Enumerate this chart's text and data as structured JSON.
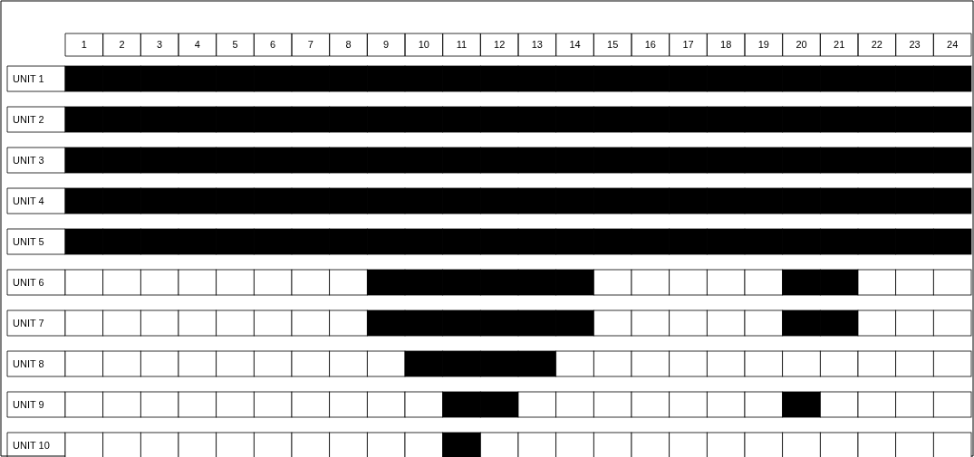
{
  "chart_data": {
    "type": "bar",
    "orientation": "horizontal",
    "stacked": true,
    "categories": [
      "UNIT 1",
      "UNIT 2",
      "UNIT 3",
      "UNIT 4",
      "UNIT 5",
      "UNIT 6",
      "UNIT 7",
      "UNIT 8",
      "UNIT 9",
      "UNIT 10"
    ],
    "series": [
      {
        "colors": [
          "#000000",
          "#000000",
          "#000000",
          "#000000",
          "#000000",
          "#ffffff",
          "#ffffff",
          "#ffffff",
          "#ffffff",
          "#ffffff"
        ],
        "values": [
          1,
          1,
          1,
          1,
          1,
          1,
          1,
          1,
          1,
          1
        ]
      },
      {
        "colors": [
          "#000000",
          "#000000",
          "#000000",
          "#000000",
          "#000000",
          "#ffffff",
          "#ffffff",
          "#ffffff",
          "#ffffff",
          "#ffffff"
        ],
        "values": [
          1,
          1,
          1,
          1,
          1,
          1,
          1,
          1,
          1,
          1
        ]
      },
      {
        "colors": [
          "#000000",
          "#000000",
          "#000000",
          "#000000",
          "#000000",
          "#ffffff",
          "#ffffff",
          "#ffffff",
          "#ffffff",
          "#ffffff"
        ],
        "values": [
          1,
          1,
          1,
          1,
          1,
          1,
          1,
          1,
          1,
          1
        ]
      },
      {
        "colors": [
          "#000000",
          "#000000",
          "#000000",
          "#000000",
          "#000000",
          "#ffffff",
          "#ffffff",
          "#ffffff",
          "#ffffff",
          "#ffffff"
        ],
        "values": [
          1,
          1,
          1,
          1,
          1,
          1,
          1,
          1,
          1,
          1
        ]
      },
      {
        "colors": [
          "#000000",
          "#000000",
          "#000000",
          "#000000",
          "#000000",
          "#ffffff",
          "#ffffff",
          "#ffffff",
          "#ffffff",
          "#ffffff"
        ],
        "values": [
          1,
          1,
          1,
          1,
          1,
          1,
          1,
          1,
          1,
          1
        ]
      },
      {
        "colors": [
          "#000000",
          "#000000",
          "#000000",
          "#000000",
          "#000000",
          "#ffffff",
          "#ffffff",
          "#ffffff",
          "#ffffff",
          "#ffffff"
        ],
        "values": [
          1,
          1,
          1,
          1,
          1,
          1,
          1,
          1,
          1,
          1
        ]
      },
      {
        "colors": [
          "#000000",
          "#000000",
          "#000000",
          "#000000",
          "#000000",
          "#ffffff",
          "#ffffff",
          "#ffffff",
          "#ffffff",
          "#ffffff"
        ],
        "values": [
          1,
          1,
          1,
          1,
          1,
          1,
          1,
          1,
          1,
          1
        ]
      },
      {
        "colors": [
          "#000000",
          "#000000",
          "#000000",
          "#000000",
          "#000000",
          "#ffffff",
          "#ffffff",
          "#ffffff",
          "#ffffff",
          "#ffffff"
        ],
        "values": [
          1,
          1,
          1,
          1,
          1,
          1,
          1,
          1,
          1,
          1
        ]
      },
      {
        "colors": [
          "#000000",
          "#000000",
          "#000000",
          "#000000",
          "#000000",
          "#000000",
          "#000000",
          "#ffffff",
          "#ffffff",
          "#ffffff"
        ],
        "values": [
          1,
          1,
          1,
          1,
          1,
          1,
          1,
          1,
          1,
          1
        ]
      },
      {
        "colors": [
          "#000000",
          "#000000",
          "#000000",
          "#000000",
          "#000000",
          "#000000",
          "#000000",
          "#000000",
          "#ffffff",
          "#ffffff"
        ],
        "values": [
          1,
          1,
          1,
          1,
          1,
          1,
          1,
          1,
          1,
          1
        ]
      },
      {
        "colors": [
          "#000000",
          "#000000",
          "#000000",
          "#000000",
          "#000000",
          "#000000",
          "#000000",
          "#000000",
          "#000000",
          "#000000"
        ],
        "values": [
          1,
          1,
          1,
          1,
          1,
          1,
          1,
          1,
          1,
          1
        ]
      },
      {
        "colors": [
          "#000000",
          "#000000",
          "#000000",
          "#000000",
          "#000000",
          "#000000",
          "#000000",
          "#000000",
          "#000000",
          "#ffffff"
        ],
        "values": [
          1,
          1,
          1,
          1,
          1,
          1,
          1,
          1,
          1,
          1
        ]
      },
      {
        "colors": [
          "#000000",
          "#000000",
          "#000000",
          "#000000",
          "#000000",
          "#000000",
          "#000000",
          "#000000",
          "#ffffff",
          "#ffffff"
        ],
        "values": [
          1,
          1,
          1,
          1,
          1,
          1,
          1,
          1,
          1,
          1
        ]
      },
      {
        "colors": [
          "#000000",
          "#000000",
          "#000000",
          "#000000",
          "#000000",
          "#000000",
          "#000000",
          "#ffffff",
          "#ffffff",
          "#ffffff"
        ],
        "values": [
          1,
          1,
          1,
          1,
          1,
          1,
          1,
          1,
          1,
          1
        ]
      },
      {
        "colors": [
          "#000000",
          "#000000",
          "#000000",
          "#000000",
          "#000000",
          "#ffffff",
          "#ffffff",
          "#ffffff",
          "#ffffff",
          "#ffffff"
        ],
        "values": [
          1,
          1,
          1,
          1,
          1,
          1,
          1,
          1,
          1,
          1
        ]
      },
      {
        "colors": [
          "#000000",
          "#000000",
          "#000000",
          "#000000",
          "#000000",
          "#ffffff",
          "#ffffff",
          "#ffffff",
          "#ffffff",
          "#ffffff"
        ],
        "values": [
          1,
          1,
          1,
          1,
          1,
          1,
          1,
          1,
          1,
          1
        ]
      },
      {
        "colors": [
          "#000000",
          "#000000",
          "#000000",
          "#000000",
          "#000000",
          "#ffffff",
          "#ffffff",
          "#ffffff",
          "#ffffff",
          "#ffffff"
        ],
        "values": [
          1,
          1,
          1,
          1,
          1,
          1,
          1,
          1,
          1,
          1
        ]
      },
      {
        "colors": [
          "#000000",
          "#000000",
          "#000000",
          "#000000",
          "#000000",
          "#ffffff",
          "#ffffff",
          "#ffffff",
          "#ffffff",
          "#ffffff"
        ],
        "values": [
          1,
          1,
          1,
          1,
          1,
          1,
          1,
          1,
          1,
          1
        ]
      },
      {
        "colors": [
          "#000000",
          "#000000",
          "#000000",
          "#000000",
          "#000000",
          "#ffffff",
          "#ffffff",
          "#ffffff",
          "#ffffff",
          "#ffffff"
        ],
        "values": [
          1,
          1,
          1,
          1,
          1,
          1,
          1,
          1,
          1,
          1
        ]
      },
      {
        "colors": [
          "#000000",
          "#000000",
          "#000000",
          "#000000",
          "#000000",
          "#000000",
          "#000000",
          "#ffffff",
          "#000000",
          "#ffffff"
        ],
        "values": [
          1,
          1,
          1,
          1,
          1,
          1,
          1,
          1,
          1,
          1
        ]
      },
      {
        "colors": [
          "#000000",
          "#000000",
          "#000000",
          "#000000",
          "#000000",
          "#000000",
          "#000000",
          "#ffffff",
          "#ffffff",
          "#ffffff"
        ],
        "values": [
          1,
          1,
          1,
          1,
          1,
          1,
          1,
          1,
          1,
          1
        ]
      },
      {
        "colors": [
          "#000000",
          "#000000",
          "#000000",
          "#000000",
          "#000000",
          "#ffffff",
          "#ffffff",
          "#ffffff",
          "#ffffff",
          "#ffffff"
        ],
        "values": [
          1,
          1,
          1,
          1,
          1,
          1,
          1,
          1,
          1,
          1
        ]
      },
      {
        "colors": [
          "#000000",
          "#000000",
          "#000000",
          "#000000",
          "#000000",
          "#ffffff",
          "#ffffff",
          "#ffffff",
          "#ffffff",
          "#ffffff"
        ],
        "values": [
          1,
          1,
          1,
          1,
          1,
          1,
          1,
          1,
          1,
          1
        ]
      },
      {
        "colors": [
          "#000000",
          "#000000",
          "#000000",
          "#000000",
          "#000000",
          "#ffffff",
          "#ffffff",
          "#ffffff",
          "#ffffff",
          "#ffffff"
        ],
        "values": [
          1,
          1,
          1,
          1,
          1,
          1,
          1,
          1,
          1,
          1
        ]
      }
    ],
    "xlim": [
      0,
      24
    ],
    "xticks": [
      {
        "value": 0.5,
        "label": "1"
      },
      {
        "value": 1.5,
        "label": "2"
      },
      {
        "value": 2.5,
        "label": "3"
      },
      {
        "value": 3.5,
        "label": "4"
      },
      {
        "value": 4.5,
        "label": "5"
      },
      {
        "value": 5.5,
        "label": "6"
      },
      {
        "value": 6.5,
        "label": "7"
      },
      {
        "value": 7.5,
        "label": "8"
      },
      {
        "value": 8.5,
        "label": "9"
      },
      {
        "value": 9.5,
        "label": "10"
      },
      {
        "value": 10.5,
        "label": "11"
      },
      {
        "value": 11.5,
        "label": "12"
      },
      {
        "value": 12.5,
        "label": "13"
      },
      {
        "value": 13.5,
        "label": "14"
      },
      {
        "value": 14.5,
        "label": "15"
      },
      {
        "value": 15.5,
        "label": "16"
      },
      {
        "value": 16.5,
        "label": "17"
      },
      {
        "value": 17.5,
        "label": "18"
      },
      {
        "value": 18.5,
        "label": "19"
      },
      {
        "value": 19.5,
        "label": "20"
      },
      {
        "value": 20.5,
        "label": "21"
      },
      {
        "value": 21.5,
        "label": "22"
      },
      {
        "value": 22.5,
        "label": "23"
      },
      {
        "value": 23.5,
        "label": "24"
      }
    ],
    "tick_labels": "x"
  }
}
